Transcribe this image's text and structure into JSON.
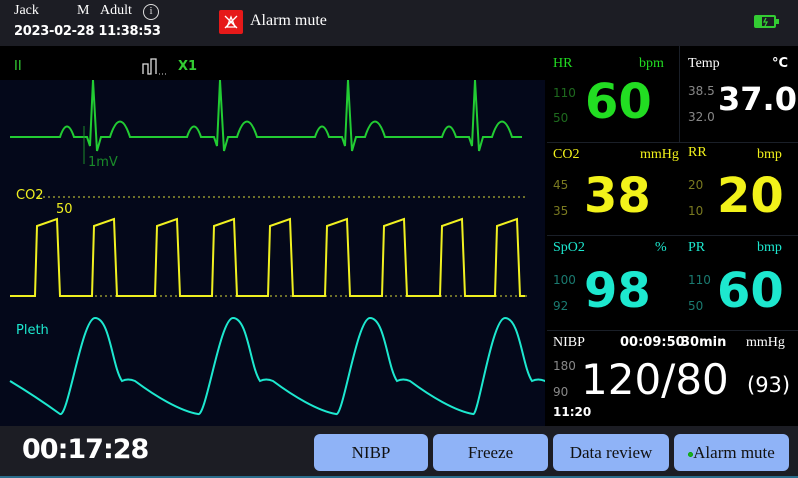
{
  "header": {
    "patient_name": "Jack",
    "sex": "M",
    "patient_type": "Adult",
    "datetime": "2023-02-28 11:38:53",
    "alarm_status": "Alarm mute",
    "info_icon": "info-icon",
    "battery_icon": "battery-charging-icon"
  },
  "waveforms": {
    "ecg_lead": "II",
    "ecg_gain": "X1",
    "ecg_scale": "1mV",
    "co2_label": "CO2",
    "co2_scale": "50",
    "pleth_label": "Pleth"
  },
  "colors": {
    "hr": "#22dd22",
    "co2": "#f2f21a",
    "spo2": "#1de8cf",
    "white": "#ffffff",
    "button": "#8fb3f7",
    "alarm": "#e61919"
  },
  "params": {
    "hr": {
      "label": "HR",
      "unit": "bpm",
      "high": "110",
      "low": "50",
      "value": "60"
    },
    "temp": {
      "label": "Temp",
      "unit": "°C",
      "high": "38.5",
      "low": "32.0",
      "value": "37.0"
    },
    "co2": {
      "label": "CO2",
      "unit": "mmHg",
      "high": "45",
      "low": "35",
      "value": "38"
    },
    "rr": {
      "label": "RR",
      "unit": "bmp",
      "high": "20",
      "low": "10",
      "value": "20"
    },
    "spo2": {
      "label": "SpO2",
      "unit": "%",
      "high": "100",
      "low": "92",
      "value": "98"
    },
    "pr": {
      "label": "PR",
      "unit": "bmp",
      "high": "110",
      "low": "50",
      "value": "60"
    },
    "nibp": {
      "label": "NIBP",
      "countdown": "00:09:50",
      "interval": "30min",
      "unit": "mmHg",
      "high": "180",
      "low": "90",
      "value": "120/80",
      "mean": "(93)",
      "time": "11:20"
    }
  },
  "footer": {
    "elapsed": "00:17:28",
    "buttons": [
      "NIBP",
      "Freeze",
      "Data review",
      "Alarm mute"
    ]
  }
}
